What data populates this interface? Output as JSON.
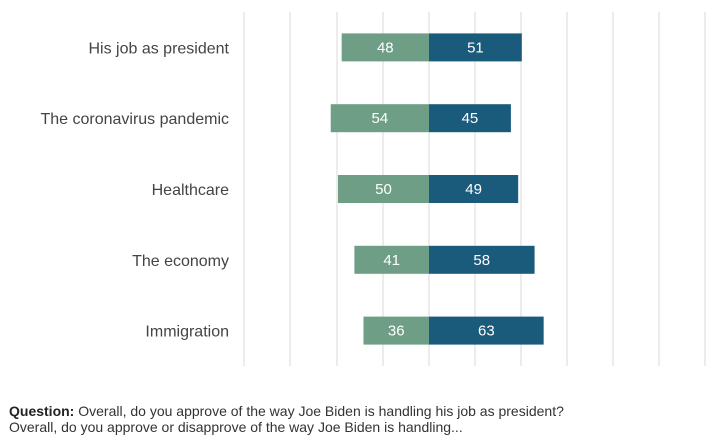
{
  "chart_data": {
    "type": "bar",
    "orientation": "horizontal",
    "stacked": "diverging",
    "categories": [
      "His job as president",
      "The coronavirus pandemic",
      "Healthcare",
      "The economy",
      "Immigration"
    ],
    "series": [
      {
        "name": "",
        "color": "#6e9e85",
        "values": [
          48,
          54,
          50,
          41,
          36
        ]
      },
      {
        "name": "",
        "color": "#1a5a7a",
        "values": [
          51,
          45,
          49,
          58,
          63
        ]
      }
    ],
    "grid": true,
    "legend": "none"
  },
  "footnote": {
    "question_label": "Question:",
    "question_text": "Overall, do you approve of the way Joe Biden is handling his job as president?",
    "second_line": "Overall, do you approve or disapprove of the way Joe Biden is handling..."
  }
}
